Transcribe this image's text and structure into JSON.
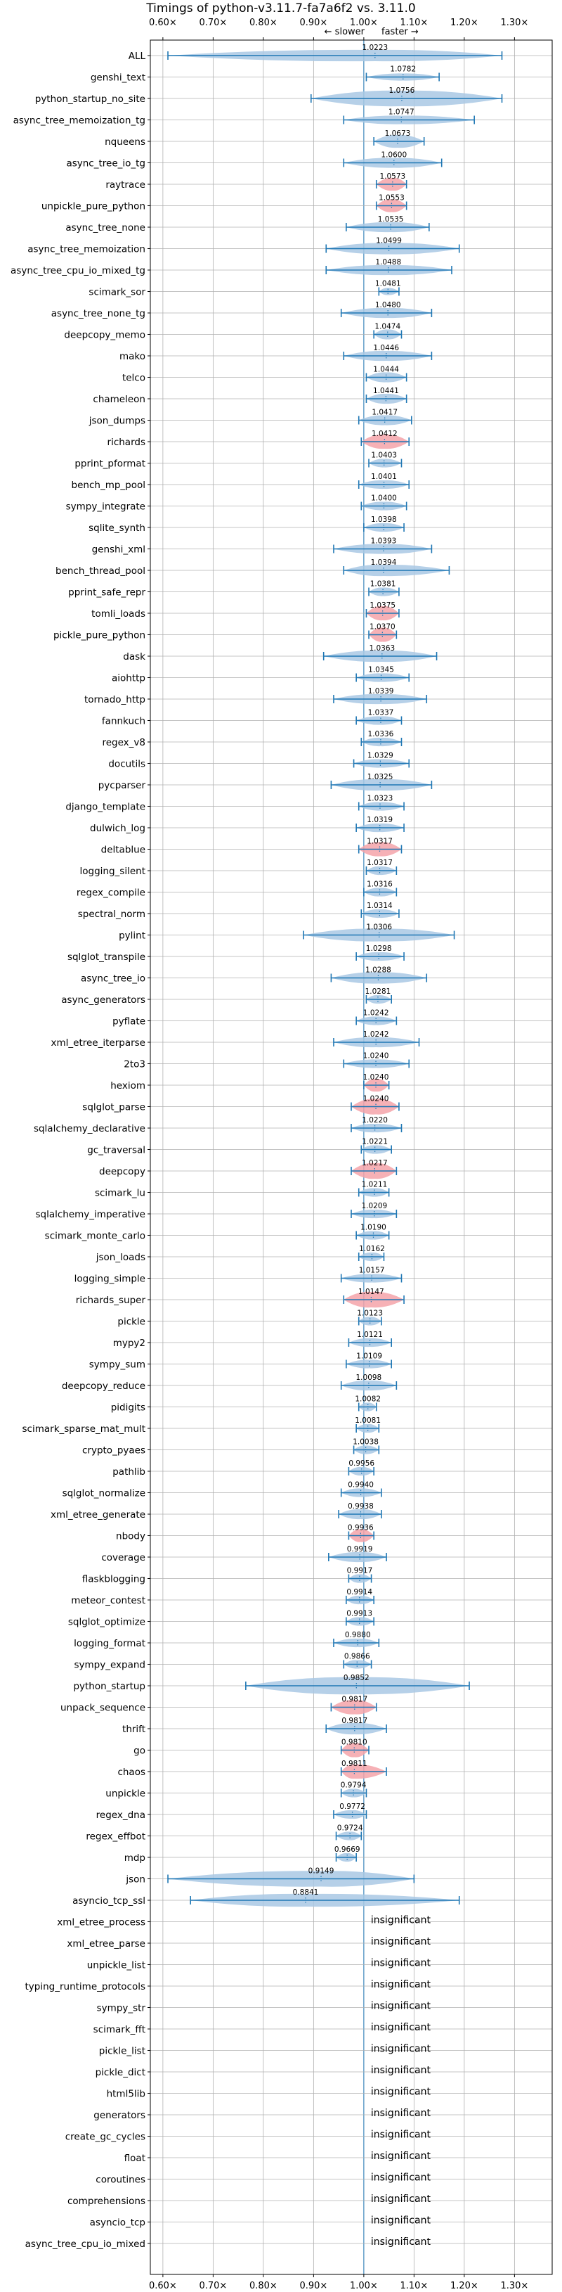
{
  "chart_data": {
    "type": "violin",
    "title": "Timings of python-v3.11.7-fa7a6f2 vs. 3.11.0",
    "subtitle_left": "← slower",
    "subtitle_right": "faster →",
    "xlim": [
      0.575,
      1.375
    ],
    "xticks": [
      0.6,
      0.7,
      0.8,
      0.9,
      1.0,
      1.1,
      1.2,
      1.3
    ],
    "xtick_labels": [
      "0.60×",
      "0.70×",
      "0.80×",
      "0.90×",
      "1.00×",
      "1.10×",
      "1.20×",
      "1.30×"
    ],
    "grid": true,
    "colors": {
      "default": "#a9c8e4",
      "highlight": "#f4a3a9",
      "line": "#1f77b4"
    },
    "insignificant_label": "insignificant",
    "benchmarks": [
      {
        "name": "ALL",
        "value": 1.0223,
        "label": "1.0223",
        "min": 0.61,
        "max": 1.275,
        "half_height": 8,
        "highlight": false
      },
      {
        "name": "genshi_text",
        "value": 1.0782,
        "label": "1.0782",
        "min": 1.005,
        "max": 1.15,
        "half_height": 5,
        "highlight": false
      },
      {
        "name": "python_startup_no_site",
        "value": 1.0756,
        "label": "1.0756",
        "min": 0.895,
        "max": 1.275,
        "half_height": 11,
        "highlight": false
      },
      {
        "name": "async_tree_memoization_tg",
        "value": 1.0747,
        "label": "1.0747",
        "min": 0.96,
        "max": 1.22,
        "half_height": 6,
        "highlight": false
      },
      {
        "name": "nqueens",
        "value": 1.0673,
        "label": "1.0673",
        "min": 1.02,
        "max": 1.12,
        "half_height": 9,
        "highlight": false
      },
      {
        "name": "async_tree_io_tg",
        "value": 1.06,
        "label": "1.0600",
        "min": 0.96,
        "max": 1.155,
        "half_height": 7,
        "highlight": false
      },
      {
        "name": "raytrace",
        "value": 1.0573,
        "label": "1.0573",
        "min": 1.025,
        "max": 1.085,
        "half_height": 9,
        "highlight": true
      },
      {
        "name": "unpickle_pure_python",
        "value": 1.0553,
        "label": "1.0553",
        "min": 1.025,
        "max": 1.085,
        "half_height": 9,
        "highlight": true
      },
      {
        "name": "async_tree_none",
        "value": 1.0535,
        "label": "1.0535",
        "min": 0.965,
        "max": 1.13,
        "half_height": 7,
        "highlight": false
      },
      {
        "name": "async_tree_memoization",
        "value": 1.0499,
        "label": "1.0499",
        "min": 0.925,
        "max": 1.19,
        "half_height": 8,
        "highlight": false
      },
      {
        "name": "async_tree_cpu_io_mixed_tg",
        "value": 1.0488,
        "label": "1.0488",
        "min": 0.925,
        "max": 1.175,
        "half_height": 7,
        "highlight": false
      },
      {
        "name": "scimark_sor",
        "value": 1.0481,
        "label": "1.0481",
        "min": 1.03,
        "max": 1.07,
        "half_height": 5,
        "highlight": false
      },
      {
        "name": "async_tree_none_tg",
        "value": 1.048,
        "label": "1.0480",
        "min": 0.955,
        "max": 1.135,
        "half_height": 7,
        "highlight": false
      },
      {
        "name": "deepcopy_memo",
        "value": 1.0474,
        "label": "1.0474",
        "min": 1.02,
        "max": 1.075,
        "half_height": 7,
        "highlight": false
      },
      {
        "name": "mako",
        "value": 1.0446,
        "label": "1.0446",
        "min": 0.96,
        "max": 1.135,
        "half_height": 7,
        "highlight": false
      },
      {
        "name": "telco",
        "value": 1.0444,
        "label": "1.0444",
        "min": 1.005,
        "max": 1.085,
        "half_height": 7,
        "highlight": false
      },
      {
        "name": "chameleon",
        "value": 1.0441,
        "label": "1.0441",
        "min": 1.005,
        "max": 1.085,
        "half_height": 7,
        "highlight": false
      },
      {
        "name": "json_dumps",
        "value": 1.0417,
        "label": "1.0417",
        "min": 0.99,
        "max": 1.095,
        "half_height": 7,
        "highlight": false
      },
      {
        "name": "richards",
        "value": 1.0412,
        "label": "1.0412",
        "min": 0.995,
        "max": 1.09,
        "half_height": 10,
        "highlight": true
      },
      {
        "name": "pprint_pformat",
        "value": 1.0403,
        "label": "1.0403",
        "min": 1.01,
        "max": 1.075,
        "half_height": 6,
        "highlight": false
      },
      {
        "name": "bench_mp_pool",
        "value": 1.0401,
        "label": "1.0401",
        "min": 0.99,
        "max": 1.09,
        "half_height": 6,
        "highlight": false
      },
      {
        "name": "sympy_integrate",
        "value": 1.04,
        "label": "1.0400",
        "min": 0.995,
        "max": 1.085,
        "half_height": 6,
        "highlight": false
      },
      {
        "name": "sqlite_synth",
        "value": 1.0398,
        "label": "1.0398",
        "min": 1.0,
        "max": 1.08,
        "half_height": 6,
        "highlight": false
      },
      {
        "name": "genshi_xml",
        "value": 1.0393,
        "label": "1.0393",
        "min": 0.94,
        "max": 1.135,
        "half_height": 7,
        "highlight": false
      },
      {
        "name": "bench_thread_pool",
        "value": 1.0394,
        "label": "1.0394",
        "min": 0.96,
        "max": 1.17,
        "half_height": 8,
        "highlight": false
      },
      {
        "name": "pprint_safe_repr",
        "value": 1.0381,
        "label": "1.0381",
        "min": 1.01,
        "max": 1.07,
        "half_height": 6,
        "highlight": false
      },
      {
        "name": "tomli_loads",
        "value": 1.0375,
        "label": "1.0375",
        "min": 1.005,
        "max": 1.07,
        "half_height": 10,
        "highlight": true
      },
      {
        "name": "pickle_pure_python",
        "value": 1.037,
        "label": "1.0370",
        "min": 1.01,
        "max": 1.065,
        "half_height": 10,
        "highlight": true
      },
      {
        "name": "dask",
        "value": 1.0363,
        "label": "1.0363",
        "min": 0.92,
        "max": 1.145,
        "half_height": 8,
        "highlight": false
      },
      {
        "name": "aiohttp",
        "value": 1.0345,
        "label": "1.0345",
        "min": 0.985,
        "max": 1.09,
        "half_height": 6,
        "highlight": false
      },
      {
        "name": "tornado_http",
        "value": 1.0339,
        "label": "1.0339",
        "min": 0.94,
        "max": 1.125,
        "half_height": 7,
        "highlight": false
      },
      {
        "name": "fannkuch",
        "value": 1.0337,
        "label": "1.0337",
        "min": 0.985,
        "max": 1.075,
        "half_height": 6,
        "highlight": false
      },
      {
        "name": "regex_v8",
        "value": 1.0336,
        "label": "1.0336",
        "min": 0.995,
        "max": 1.075,
        "half_height": 6,
        "highlight": false
      },
      {
        "name": "docutils",
        "value": 1.0329,
        "label": "1.0329",
        "min": 0.98,
        "max": 1.09,
        "half_height": 6,
        "highlight": false
      },
      {
        "name": "pycparser",
        "value": 1.0325,
        "label": "1.0325",
        "min": 0.935,
        "max": 1.135,
        "half_height": 8,
        "highlight": false
      },
      {
        "name": "django_template",
        "value": 1.0323,
        "label": "1.0323",
        "min": 0.99,
        "max": 1.08,
        "half_height": 6,
        "highlight": false
      },
      {
        "name": "dulwich_log",
        "value": 1.0319,
        "label": "1.0319",
        "min": 0.985,
        "max": 1.08,
        "half_height": 6,
        "highlight": false
      },
      {
        "name": "deltablue",
        "value": 1.0317,
        "label": "1.0317",
        "min": 0.99,
        "max": 1.075,
        "half_height": 10,
        "highlight": true
      },
      {
        "name": "logging_silent",
        "value": 1.0317,
        "label": "1.0317",
        "min": 1.005,
        "max": 1.065,
        "half_height": 6,
        "highlight": false
      },
      {
        "name": "regex_compile",
        "value": 1.0316,
        "label": "1.0316",
        "min": 1.0,
        "max": 1.065,
        "half_height": 6,
        "highlight": false
      },
      {
        "name": "spectral_norm",
        "value": 1.0314,
        "label": "1.0314",
        "min": 0.995,
        "max": 1.07,
        "half_height": 6,
        "highlight": false
      },
      {
        "name": "pylint",
        "value": 1.0306,
        "label": "1.0306",
        "min": 0.88,
        "max": 1.18,
        "half_height": 9,
        "highlight": false
      },
      {
        "name": "sqlglot_transpile",
        "value": 1.0298,
        "label": "1.0298",
        "min": 0.985,
        "max": 1.08,
        "half_height": 6,
        "highlight": false
      },
      {
        "name": "async_tree_io",
        "value": 1.0288,
        "label": "1.0288",
        "min": 0.935,
        "max": 1.125,
        "half_height": 8,
        "highlight": false
      },
      {
        "name": "async_generators",
        "value": 1.0281,
        "label": "1.0281",
        "min": 1.005,
        "max": 1.055,
        "half_height": 6,
        "highlight": false
      },
      {
        "name": "pyflate",
        "value": 1.0242,
        "label": "1.0242",
        "min": 0.985,
        "max": 1.065,
        "half_height": 6,
        "highlight": false
      },
      {
        "name": "xml_etree_iterparse",
        "value": 1.0242,
        "label": "1.0242",
        "min": 0.94,
        "max": 1.11,
        "half_height": 7,
        "highlight": false
      },
      {
        "name": "2to3",
        "value": 1.024,
        "label": "1.0240",
        "min": 0.96,
        "max": 1.09,
        "half_height": 6,
        "highlight": false
      },
      {
        "name": "hexiom",
        "value": 1.024,
        "label": "1.0240",
        "min": 1.0,
        "max": 1.05,
        "half_height": 9,
        "highlight": true
      },
      {
        "name": "sqlglot_parse",
        "value": 1.024,
        "label": "1.0240",
        "min": 0.975,
        "max": 1.07,
        "half_height": 11,
        "highlight": true
      },
      {
        "name": "sqlalchemy_declarative",
        "value": 1.022,
        "label": "1.0220",
        "min": 0.975,
        "max": 1.075,
        "half_height": 6,
        "highlight": false
      },
      {
        "name": "gc_traversal",
        "value": 1.0221,
        "label": "1.0221",
        "min": 0.995,
        "max": 1.055,
        "half_height": 6,
        "highlight": false
      },
      {
        "name": "deepcopy",
        "value": 1.0217,
        "label": "1.0217",
        "min": 0.975,
        "max": 1.065,
        "half_height": 11,
        "highlight": true
      },
      {
        "name": "scimark_lu",
        "value": 1.0211,
        "label": "1.0211",
        "min": 0.99,
        "max": 1.05,
        "half_height": 6,
        "highlight": false
      },
      {
        "name": "sqlalchemy_imperative",
        "value": 1.0209,
        "label": "1.0209",
        "min": 0.975,
        "max": 1.065,
        "half_height": 6,
        "highlight": false
      },
      {
        "name": "scimark_monte_carlo",
        "value": 1.019,
        "label": "1.0190",
        "min": 0.985,
        "max": 1.05,
        "half_height": 6,
        "highlight": false
      },
      {
        "name": "json_loads",
        "value": 1.0162,
        "label": "1.0162",
        "min": 0.99,
        "max": 1.04,
        "half_height": 6,
        "highlight": false
      },
      {
        "name": "logging_simple",
        "value": 1.0157,
        "label": "1.0157",
        "min": 0.955,
        "max": 1.075,
        "half_height": 6,
        "highlight": false
      },
      {
        "name": "richards_super",
        "value": 1.0147,
        "label": "1.0147",
        "min": 0.96,
        "max": 1.08,
        "half_height": 11,
        "highlight": true
      },
      {
        "name": "pickle",
        "value": 1.0123,
        "label": "1.0123",
        "min": 0.99,
        "max": 1.035,
        "half_height": 6,
        "highlight": false
      },
      {
        "name": "mypy2",
        "value": 1.0121,
        "label": "1.0121",
        "min": 0.97,
        "max": 1.055,
        "half_height": 6,
        "highlight": false
      },
      {
        "name": "sympy_sum",
        "value": 1.0109,
        "label": "1.0109",
        "min": 0.965,
        "max": 1.055,
        "half_height": 6,
        "highlight": false
      },
      {
        "name": "deepcopy_reduce",
        "value": 1.0098,
        "label": "1.0098",
        "min": 0.955,
        "max": 1.065,
        "half_height": 7,
        "highlight": false
      },
      {
        "name": "pidigits",
        "value": 1.0082,
        "label": "1.0082",
        "min": 0.99,
        "max": 1.025,
        "half_height": 6,
        "highlight": false
      },
      {
        "name": "scimark_sparse_mat_mult",
        "value": 1.0081,
        "label": "1.0081",
        "min": 0.985,
        "max": 1.03,
        "half_height": 6,
        "highlight": false
      },
      {
        "name": "crypto_pyaes",
        "value": 1.0038,
        "label": "1.0038",
        "min": 0.98,
        "max": 1.03,
        "half_height": 6,
        "highlight": false
      },
      {
        "name": "pathlib",
        "value": 0.9956,
        "label": "0.9956",
        "min": 0.97,
        "max": 1.02,
        "half_height": 6,
        "highlight": false
      },
      {
        "name": "sqlglot_normalize",
        "value": 0.994,
        "label": "0.9940",
        "min": 0.955,
        "max": 1.035,
        "half_height": 6,
        "highlight": false
      },
      {
        "name": "xml_etree_generate",
        "value": 0.9938,
        "label": "0.9938",
        "min": 0.95,
        "max": 1.035,
        "half_height": 7,
        "highlight": false
      },
      {
        "name": "nbody",
        "value": 0.9936,
        "label": "0.9936",
        "min": 0.97,
        "max": 1.02,
        "half_height": 9,
        "highlight": true
      },
      {
        "name": "coverage",
        "value": 0.9919,
        "label": "0.9919",
        "min": 0.93,
        "max": 1.045,
        "half_height": 7,
        "highlight": false
      },
      {
        "name": "flaskblogging",
        "value": 0.9917,
        "label": "0.9917",
        "min": 0.97,
        "max": 1.015,
        "half_height": 6,
        "highlight": false
      },
      {
        "name": "meteor_contest",
        "value": 0.9914,
        "label": "0.9914",
        "min": 0.965,
        "max": 1.02,
        "half_height": 6,
        "highlight": false
      },
      {
        "name": "sqlglot_optimize",
        "value": 0.9913,
        "label": "0.9913",
        "min": 0.965,
        "max": 1.02,
        "half_height": 6,
        "highlight": false
      },
      {
        "name": "logging_format",
        "value": 0.988,
        "label": "0.9880",
        "min": 0.94,
        "max": 1.03,
        "half_height": 6,
        "highlight": false
      },
      {
        "name": "sympy_expand",
        "value": 0.9866,
        "label": "0.9866",
        "min": 0.96,
        "max": 1.015,
        "half_height": 6,
        "highlight": false
      },
      {
        "name": "python_startup",
        "value": 0.9852,
        "label": "0.9852",
        "min": 0.765,
        "max": 1.21,
        "half_height": 12,
        "highlight": false
      },
      {
        "name": "unpack_sequence",
        "value": 0.9817,
        "label": "0.9817",
        "min": 0.935,
        "max": 1.025,
        "half_height": 10,
        "highlight": true
      },
      {
        "name": "thrift",
        "value": 0.9817,
        "label": "0.9817",
        "min": 0.925,
        "max": 1.045,
        "half_height": 8,
        "highlight": false
      },
      {
        "name": "go",
        "value": 0.981,
        "label": "0.9810",
        "min": 0.955,
        "max": 1.01,
        "half_height": 10,
        "highlight": true
      },
      {
        "name": "chaos",
        "value": 0.9811,
        "label": "0.9811",
        "min": 0.955,
        "max": 1.045,
        "half_height": 10,
        "highlight": true
      },
      {
        "name": "unpickle",
        "value": 0.9794,
        "label": "0.9794",
        "min": 0.955,
        "max": 1.005,
        "half_height": 6,
        "highlight": false
      },
      {
        "name": "regex_dna",
        "value": 0.9772,
        "label": "0.9772",
        "min": 0.94,
        "max": 1.005,
        "half_height": 6,
        "highlight": false
      },
      {
        "name": "regex_effbot",
        "value": 0.9724,
        "label": "0.9724",
        "min": 0.945,
        "max": 0.995,
        "half_height": 6,
        "highlight": false
      },
      {
        "name": "mdp",
        "value": 0.9669,
        "label": "0.9669",
        "min": 0.945,
        "max": 0.985,
        "half_height": 6,
        "highlight": false
      },
      {
        "name": "json",
        "value": 0.9149,
        "label": "0.9149",
        "min": 0.61,
        "max": 1.1,
        "half_height": 11,
        "highlight": false
      },
      {
        "name": "asyncio_tcp_ssl",
        "value": 0.8841,
        "label": "0.8841",
        "min": 0.655,
        "max": 1.19,
        "half_height": 9,
        "highlight": false
      },
      {
        "name": "xml_etree_process",
        "insignificant": true
      },
      {
        "name": "xml_etree_parse",
        "insignificant": true
      },
      {
        "name": "unpickle_list",
        "insignificant": true
      },
      {
        "name": "typing_runtime_protocols",
        "insignificant": true
      },
      {
        "name": "sympy_str",
        "insignificant": true
      },
      {
        "name": "scimark_fft",
        "insignificant": true
      },
      {
        "name": "pickle_list",
        "insignificant": true
      },
      {
        "name": "pickle_dict",
        "insignificant": true
      },
      {
        "name": "html5lib",
        "insignificant": true
      },
      {
        "name": "generators",
        "insignificant": true
      },
      {
        "name": "create_gc_cycles",
        "insignificant": true
      },
      {
        "name": "float",
        "insignificant": true
      },
      {
        "name": "coroutines",
        "insignificant": true
      },
      {
        "name": "comprehensions",
        "insignificant": true
      },
      {
        "name": "asyncio_tcp",
        "insignificant": true
      },
      {
        "name": "async_tree_cpu_io_mixed",
        "insignificant": true
      }
    ]
  }
}
